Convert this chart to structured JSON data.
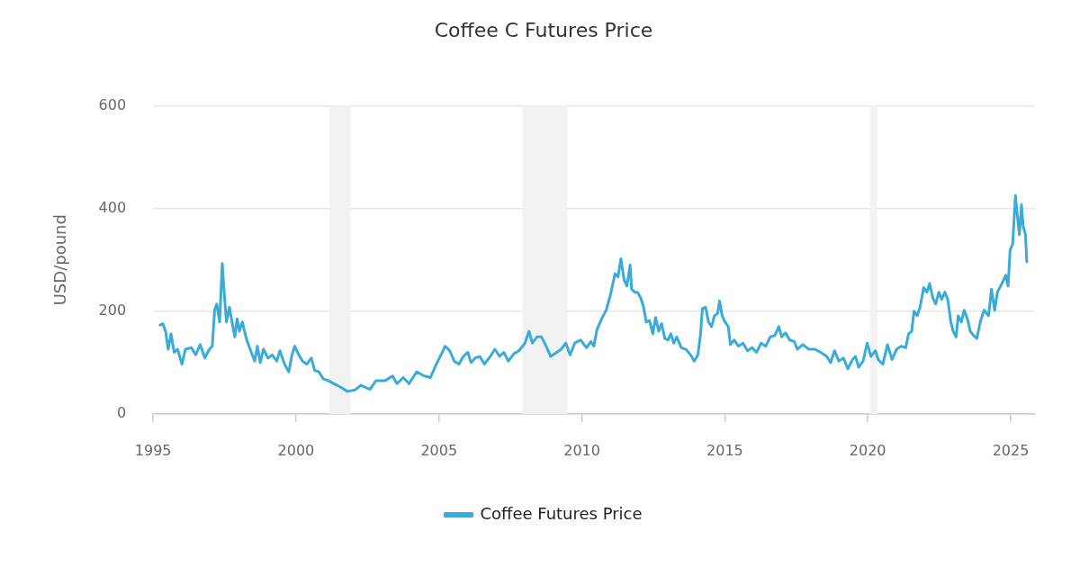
{
  "chart_data": {
    "type": "line",
    "title": "Coffee C Futures Price",
    "ylabel": "USD/pound",
    "xlim": [
      "1995-01-01",
      "2025-11-07"
    ],
    "xticks": [
      "1995",
      "2000",
      "2005",
      "2010",
      "2015",
      "2020",
      "2025"
    ],
    "ylim": [
      0,
      600
    ],
    "yticks": [
      0,
      200,
      400,
      600
    ],
    "grid": "y",
    "legend": "bottom",
    "marker": "none",
    "bands": [
      {
        "axis": "x",
        "from": "2001-03-01",
        "to": "2001-11-30",
        "color": "#f2f2f2"
      },
      {
        "axis": "x",
        "from": "2007-12-01",
        "to": "2009-06-30",
        "color": "#f2f2f2"
      },
      {
        "axis": "x",
        "from": "2020-02-01",
        "to": "2020-04-30",
        "color": "#f2f2f2"
      }
    ],
    "x": [
      "1995-04-01",
      "1995-05-03",
      "1995-06-09",
      "1995-07-12",
      "1995-08-18",
      "1995-09-27",
      "1995-11-10",
      "1996-01-04",
      "1996-02-17",
      "1996-05-03",
      "1996-06-27",
      "1996-08-25",
      "1996-10-22",
      "1996-12-20",
      "1997-01-26",
      "1997-02-25",
      "1997-03-24",
      "1997-04-30",
      "1997-06-02",
      "1997-06-27",
      "1997-07-26",
      "1997-09-02",
      "1997-10-05",
      "1997-11-10",
      "1997-12-09",
      "1998-01-08",
      "1998-02-14",
      "1998-04-11",
      "1998-06-09",
      "1998-07-22",
      "1998-08-25",
      "1998-10-01",
      "1998-11-10",
      "1999-01-08",
      "1999-03-02",
      "1999-04-30",
      "1999-06-09",
      "1999-08-07",
      "1999-10-01",
      "1999-11-10",
      "1999-12-16",
      "2000-01-26",
      "2000-03-24",
      "2000-05-18",
      "2000-07-15",
      "2000-08-25",
      "2000-10-19",
      "2000-12-16",
      "2001-02-14",
      "2001-04-30",
      "2001-07-15",
      "2001-10-19",
      "2002-01-26",
      "2002-04-11",
      "2002-05-18",
      "2002-08-03",
      "2002-10-19",
      "2003-02-14",
      "2003-05-18",
      "2003-07-15",
      "2003-10-01",
      "2003-12-16",
      "2004-03-20",
      "2004-06-27",
      "2004-09-13",
      "2004-11-28",
      "2005-01-26",
      "2005-03-20",
      "2005-05-18",
      "2005-07-15",
      "2005-09-13",
      "2005-11-07",
      "2006-01-04",
      "2006-02-14",
      "2006-04-08",
      "2006-06-06",
      "2006-08-03",
      "2006-10-19",
      "2006-12-16",
      "2007-02-14",
      "2007-04-08",
      "2007-06-06",
      "2007-08-21",
      "2007-10-19",
      "2008-01-04",
      "2008-02-25",
      "2008-04-08",
      "2008-06-06",
      "2008-08-03",
      "2008-10-01",
      "2008-11-28",
      "2009-02-14",
      "2009-04-11",
      "2009-06-09",
      "2009-08-03",
      "2009-10-01",
      "2009-12-16",
      "2010-02-28",
      "2010-04-26",
      "2010-06-02",
      "2010-07-12",
      "2010-09-09",
      "2010-11-07",
      "2011-01-01",
      "2011-02-28",
      "2011-04-08",
      "2011-05-14",
      "2011-06-24",
      "2011-07-30",
      "2011-09-09",
      "2011-09-27",
      "2011-11-07",
      "2011-12-13",
      "2012-01-22",
      "2012-02-28",
      "2012-04-01",
      "2012-05-14",
      "2012-06-24",
      "2012-07-30",
      "2012-09-09",
      "2012-10-15",
      "2012-11-25",
      "2013-01-04",
      "2013-02-10",
      "2013-03-20",
      "2013-04-26",
      "2013-06-24",
      "2013-08-21",
      "2013-10-19",
      "2013-12-06",
      "2014-01-22",
      "2014-02-25",
      "2014-03-20",
      "2014-04-30",
      "2014-06-06",
      "2014-07-15",
      "2014-08-21",
      "2014-10-01",
      "2014-10-26",
      "2014-11-28",
      "2015-01-04",
      "2015-02-14",
      "2015-03-13",
      "2015-04-30",
      "2015-06-24",
      "2015-08-21",
      "2015-10-19",
      "2015-12-16",
      "2016-02-10",
      "2016-04-08",
      "2016-06-06",
      "2016-08-03",
      "2016-10-01",
      "2016-11-21",
      "2016-12-27",
      "2017-02-14",
      "2017-04-08",
      "2017-06-06",
      "2017-07-15",
      "2017-09-23",
      "2017-12-09",
      "2018-02-25",
      "2018-05-10",
      "2018-07-26",
      "2018-09-13",
      "2018-11-03",
      "2018-12-27",
      "2019-02-25",
      "2019-04-22",
      "2019-06-20",
      "2019-07-30",
      "2019-09-06",
      "2019-11-03",
      "2019-12-24",
      "2020-02-10",
      "2020-04-08",
      "2020-05-14",
      "2020-07-12",
      "2020-09-09",
      "2020-11-07",
      "2021-01-04",
      "2021-03-02",
      "2021-04-30",
      "2021-06-06",
      "2021-07-15",
      "2021-08-14",
      "2021-09-23",
      "2021-10-30",
      "2021-12-16",
      "2022-01-26",
      "2022-03-02",
      "2022-04-11",
      "2022-05-18",
      "2022-06-27",
      "2022-08-03",
      "2022-09-13",
      "2022-10-19",
      "2022-11-28",
      "2022-12-27",
      "2023-02-03",
      "2023-03-02",
      "2023-04-11",
      "2023-05-18",
      "2023-06-27",
      "2023-08-03",
      "2023-09-13",
      "2023-10-26",
      "2023-12-09",
      "2024-01-26",
      "2024-03-24",
      "2024-04-30",
      "2024-06-09",
      "2024-07-15",
      "2024-09-13",
      "2024-10-30",
      "2024-11-28",
      "2024-12-24",
      "2025-01-26",
      "2025-03-02",
      "2025-04-01",
      "2025-04-22",
      "2025-05-18",
      "2025-06-09",
      "2025-07-08",
      "2025-07-26"
    ],
    "series": [
      {
        "name": "Coffee Futures Price",
        "color": "#3aabd8",
        "values": [
          173,
          176,
          161,
          126,
          156,
          120,
          126,
          97,
          126,
          129,
          115,
          135,
          109,
          126,
          132,
          202,
          214,
          179,
          293,
          237,
          179,
          208,
          179,
          150,
          185,
          161,
          179,
          144,
          120,
          103,
          132,
          100,
          126,
          109,
          115,
          103,
          123,
          97,
          82,
          115,
          132,
          118,
          103,
          97,
          109,
          85,
          82,
          68,
          65,
          59,
          53,
          44,
          47,
          56,
          53,
          48,
          65,
          65,
          74,
          59,
          71,
          59,
          82,
          74,
          71,
          97,
          115,
          132,
          123,
          103,
          97,
          112,
          120,
          100,
          109,
          112,
          97,
          112,
          126,
          112,
          120,
          103,
          118,
          123,
          138,
          161,
          138,
          150,
          150,
          132,
          112,
          120,
          126,
          138,
          115,
          138,
          144,
          129,
          141,
          132,
          164,
          185,
          202,
          232,
          273,
          267,
          302,
          261,
          249,
          290,
          243,
          237,
          237,
          226,
          208,
          179,
          182,
          156,
          188,
          161,
          176,
          147,
          144,
          156,
          138,
          150,
          129,
          126,
          115,
          103,
          115,
          156,
          205,
          208,
          179,
          170,
          191,
          196,
          220,
          191,
          179,
          170,
          135,
          144,
          132,
          138,
          123,
          129,
          120,
          138,
          132,
          150,
          153,
          170,
          150,
          158,
          144,
          141,
          126,
          135,
          126,
          126,
          120,
          112,
          100,
          123,
          103,
          109,
          88,
          106,
          112,
          91,
          103,
          138,
          112,
          123,
          106,
          97,
          135,
          106,
          126,
          132,
          129,
          156,
          161,
          200,
          191,
          208,
          246,
          237,
          254,
          226,
          214,
          237,
          223,
          237,
          223,
          179,
          161,
          150,
          191,
          179,
          202,
          185,
          161,
          153,
          147,
          179,
          202,
          191,
          243,
          202,
          237,
          255,
          270,
          249,
          319,
          331,
          425,
          378,
          349,
          407,
          366,
          349,
          296
        ]
      }
    ]
  }
}
